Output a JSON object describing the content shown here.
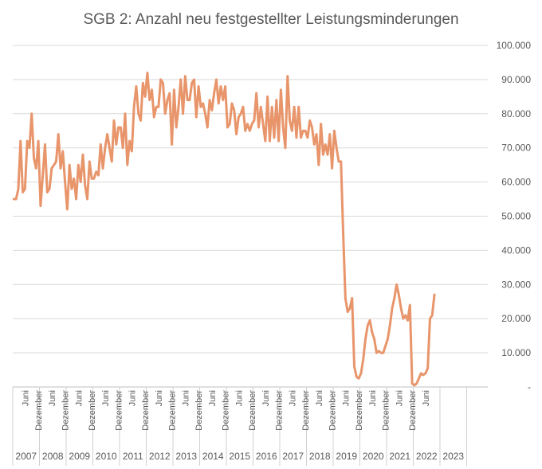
{
  "chart_data": {
    "type": "line",
    "title": "SGB 2: Anzahl neu festgestellter Leistungsminderungen",
    "xlabel": "",
    "ylabel": "",
    "ylim": [
      0,
      100000
    ],
    "y_ticks": [
      0,
      10000,
      20000,
      30000,
      40000,
      50000,
      60000,
      70000,
      80000,
      90000,
      100000
    ],
    "y_tick_labels": [
      "-",
      "10.000",
      "20.000",
      "30.000",
      "40.000",
      "50.000",
      "60.000",
      "70.000",
      "80.000",
      "90.000",
      "100.000"
    ],
    "grid": true,
    "legend": "none",
    "line_color": "#e8956b",
    "x_start": "2007-01",
    "month_labels": [
      "Juni",
      "Dezember"
    ],
    "years": [
      "2007",
      "2008",
      "2009",
      "2010",
      "2011",
      "2012",
      "2013",
      "2014",
      "2015",
      "2016",
      "2017",
      "2018",
      "2019",
      "2020",
      "2021",
      "2022",
      "2023"
    ],
    "values": [
      55000,
      55000,
      58000,
      72000,
      57000,
      58000,
      72000,
      70000,
      80000,
      67000,
      64000,
      72000,
      53000,
      62000,
      71000,
      57000,
      58000,
      64000,
      65000,
      66000,
      74000,
      64000,
      69000,
      60000,
      52000,
      65000,
      58000,
      61000,
      55000,
      65000,
      60000,
      68000,
      59000,
      55000,
      66000,
      61000,
      61000,
      63000,
      62000,
      71000,
      64000,
      70000,
      74000,
      70000,
      66000,
      78000,
      71000,
      76000,
      76000,
      70000,
      80000,
      65000,
      72000,
      69000,
      82000,
      88000,
      80000,
      78000,
      89000,
      85000,
      92000,
      84000,
      87000,
      79000,
      82000,
      82000,
      90000,
      89000,
      80000,
      84000,
      86000,
      71000,
      87000,
      76000,
      82000,
      90000,
      80000,
      91000,
      84000,
      84000,
      89000,
      90000,
      79000,
      88000,
      82000,
      83000,
      80000,
      76000,
      84000,
      81000,
      86000,
      90000,
      83000,
      88000,
      84000,
      88000,
      76000,
      77000,
      83000,
      81000,
      74000,
      79000,
      80000,
      82000,
      75000,
      77000,
      75000,
      77000,
      78000,
      86000,
      76000,
      82000,
      77000,
      72000,
      85000,
      72000,
      82000,
      73000,
      84000,
      72000,
      87000,
      76000,
      70000,
      91000,
      78000,
      75000,
      82000,
      73000,
      82000,
      73000,
      75000,
      75000,
      73000,
      78000,
      76000,
      71000,
      74000,
      65000,
      77000,
      68000,
      71000,
      68000,
      74000,
      64000,
      75000,
      70000,
      66000,
      66000,
      45000,
      26000,
      22000,
      23000,
      26000,
      6000,
      3000,
      2500,
      4000,
      8000,
      14000,
      18000,
      19500,
      16000,
      14000,
      10000,
      10500,
      10000,
      10000,
      12000,
      14000,
      18000,
      23000,
      26000,
      30000,
      27000,
      23000,
      20000,
      21000,
      19500,
      24000,
      1000,
      500,
      1000,
      2500,
      4000,
      3500,
      4000,
      5500,
      20000,
      21000,
      27000
    ]
  }
}
